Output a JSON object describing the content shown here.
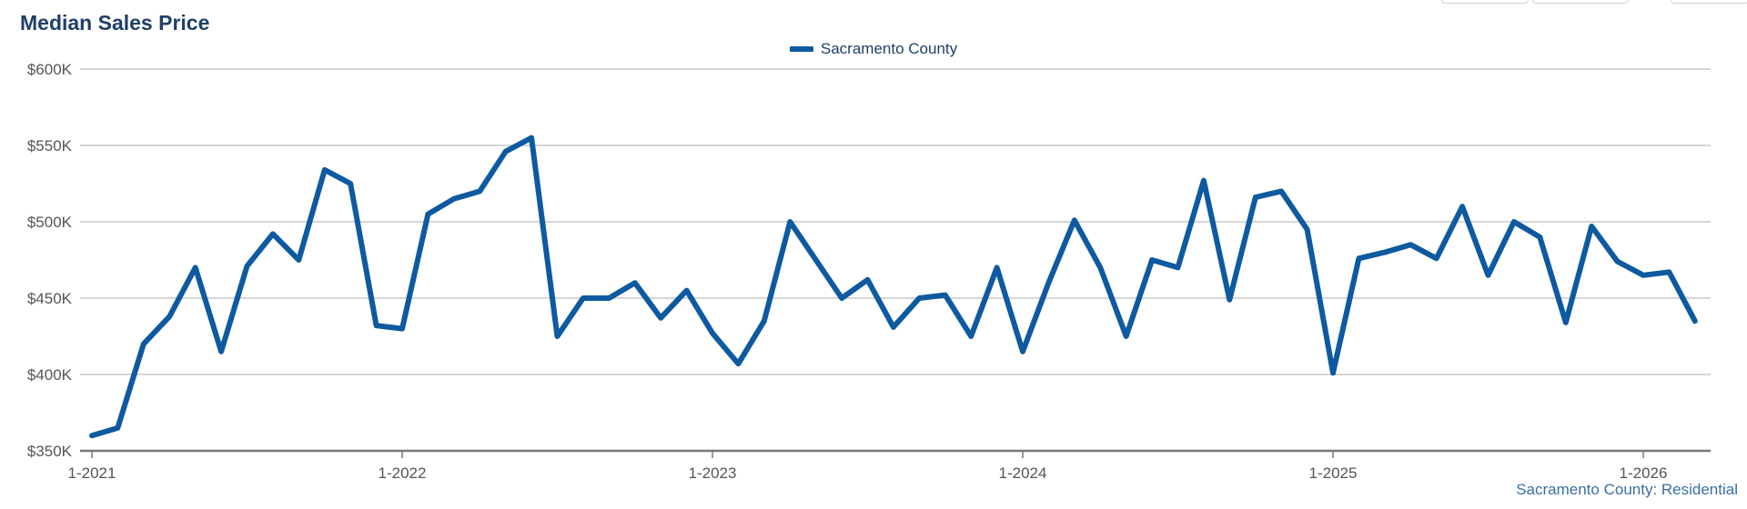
{
  "page": {
    "title": "Median Sales Price",
    "footer": "Sacramento County: Residential"
  },
  "colors": {
    "series": "#0e5aa0",
    "grid": "#c8c8c8",
    "axis": "#777777",
    "tick_text": "#555555",
    "title": "#1f3f66"
  },
  "chart_data": {
    "type": "line",
    "title": "Median Sales Price",
    "xlabel": "",
    "ylabel": "",
    "ylim": [
      350000,
      600000
    ],
    "yticks": [
      350000,
      400000,
      450000,
      500000,
      550000,
      600000
    ],
    "ytick_labels": [
      "$350K",
      "$400K",
      "$450K",
      "$500K",
      "$550K",
      "$600K"
    ],
    "xtick_labels": [
      "1-2021",
      "1-2022",
      "1-2023",
      "1-2024",
      "1-2025",
      "1-2026"
    ],
    "x_start": "2021-01",
    "x_end": "2026-03",
    "grid": true,
    "legend": "top-center",
    "series": [
      {
        "name": "Sacramento County",
        "values": [
          360000,
          365000,
          420000,
          438000,
          470000,
          415000,
          471000,
          492000,
          475000,
          534000,
          525000,
          432000,
          430000,
          505000,
          515000,
          520000,
          546000,
          555000,
          425000,
          450000,
          450000,
          460000,
          437000,
          455000,
          427000,
          407000,
          435000,
          500000,
          475000,
          450000,
          462000,
          431000,
          450000,
          452000,
          425000,
          470000,
          415000,
          460000,
          501000,
          470000,
          425000,
          475000,
          470000,
          527000,
          449000,
          516000,
          520000,
          495000,
          401000,
          476000,
          480000,
          485000,
          476000,
          510000,
          465000,
          500000,
          490000,
          434000,
          497000,
          474000,
          465000,
          467000,
          435000
        ]
      }
    ]
  }
}
